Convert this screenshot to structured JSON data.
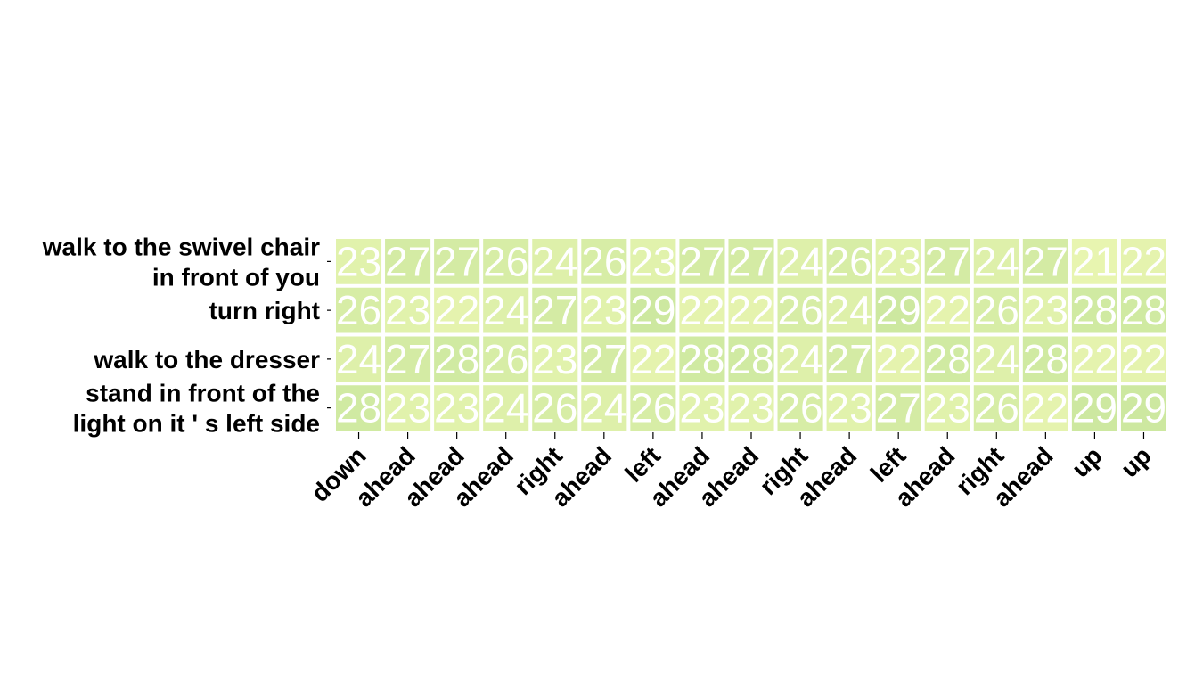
{
  "chart_data": {
    "type": "heatmap",
    "title": "",
    "xlabel": "",
    "ylabel": "",
    "rows": [
      [
        "walk to the swivel chair",
        "in front of you"
      ],
      [
        "turn right"
      ],
      [
        "walk to the dresser"
      ],
      [
        "stand in front of the",
        "light on it ' s left side"
      ]
    ],
    "columns": [
      "down",
      "ahead",
      "ahead",
      "ahead",
      "right",
      "ahead",
      "left",
      "ahead",
      "ahead",
      "right",
      "ahead",
      "left",
      "ahead",
      "right",
      "ahead",
      "up",
      "up"
    ],
    "values": [
      [
        23,
        27,
        27,
        26,
        24,
        26,
        23,
        27,
        27,
        24,
        26,
        23,
        27,
        24,
        27,
        21,
        22
      ],
      [
        26,
        23,
        22,
        24,
        27,
        23,
        29,
        22,
        22,
        26,
        24,
        29,
        22,
        26,
        23,
        28,
        28
      ],
      [
        24,
        27,
        28,
        26,
        23,
        27,
        22,
        28,
        28,
        24,
        27,
        22,
        28,
        24,
        28,
        22,
        22
      ],
      [
        28,
        23,
        23,
        24,
        26,
        24,
        26,
        23,
        23,
        26,
        23,
        27,
        23,
        26,
        22,
        29,
        29
      ]
    ],
    "color_low": "#e8f5b0",
    "color_high": "#cde8a0",
    "cell_text_color": "#ffffff",
    "cell_border_color": "#ffffff",
    "grid": false,
    "legend": "none"
  }
}
